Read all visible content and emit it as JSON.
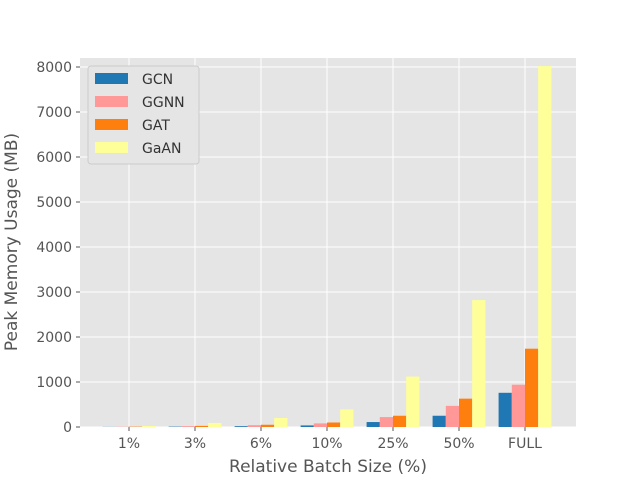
{
  "chart_data": {
    "type": "bar",
    "title": "",
    "xlabel": "Relative Batch Size (%)",
    "ylabel": "Peak Memory Usage (MB)",
    "categories": [
      "1%",
      "3%",
      "6%",
      "10%",
      "25%",
      "50%",
      "FULL"
    ],
    "ylim": [
      0,
      8200
    ],
    "yticks": [
      0,
      1000,
      2000,
      3000,
      4000,
      5000,
      6000,
      7000,
      8000
    ],
    "grid": true,
    "legend_position": "top-left",
    "series": [
      {
        "name": "GCN",
        "color": "#1f77b4",
        "values": [
          3,
          8,
          18,
          35,
          110,
          250,
          760
        ]
      },
      {
        "name": "GGNN",
        "color": "#ff9896",
        "values": [
          6,
          18,
          40,
          80,
          220,
          470,
          940
        ]
      },
      {
        "name": "GAT",
        "color": "#ff7f0e",
        "values": [
          8,
          25,
          50,
          100,
          250,
          630,
          1740
        ]
      },
      {
        "name": "GaAN",
        "color": "#ffff99",
        "values": [
          22,
          90,
          200,
          390,
          1120,
          2820,
          8020
        ]
      }
    ]
  }
}
